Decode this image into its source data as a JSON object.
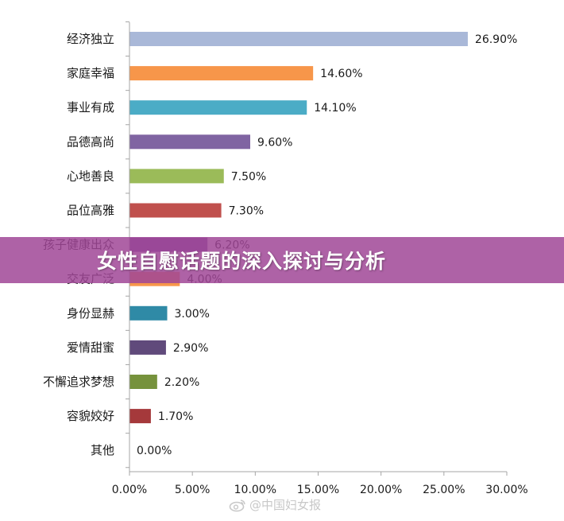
{
  "banner": {
    "title": "女性自慰话题的深入探讨与分析"
  },
  "watermark": {
    "text": "@中国妇女报",
    "icon": "weibo-icon"
  },
  "chart_data": {
    "type": "bar",
    "orientation": "horizontal",
    "categories": [
      "经济独立",
      "家庭幸福",
      "事业有成",
      "品德高尚",
      "心地善良",
      "品位高雅",
      "孩子健康出众",
      "交友广泛",
      "身份显赫",
      "爱情甜蜜",
      "不懈追求梦想",
      "容貌姣好",
      "其他"
    ],
    "values": [
      26.9,
      14.6,
      14.1,
      9.6,
      7.5,
      7.3,
      6.2,
      4.0,
      3.0,
      2.9,
      2.2,
      1.7,
      0.0
    ],
    "data_labels": [
      "26.90%",
      "14.60%",
      "14.10%",
      "9.60%",
      "7.50%",
      "7.30%",
      "6.20%",
      "4.00%",
      "3.00%",
      "2.90%",
      "2.20%",
      "1.70%",
      "0.00%"
    ],
    "colors": [
      "#a9b8d8",
      "#f7964a",
      "#4bacc6",
      "#8064a2",
      "#9bbb59",
      "#c0504d",
      "#7a4fa0",
      "#f7964a",
      "#2f8aa6",
      "#604a7b",
      "#76923c",
      "#a5393b",
      "#7f7f7f"
    ],
    "xlim": [
      0,
      30
    ],
    "x_ticks": [
      0,
      5,
      10,
      15,
      20,
      25,
      30
    ],
    "x_tick_labels": [
      "0.00%",
      "5.00%",
      "10.00%",
      "15.00%",
      "20.00%",
      "25.00%",
      "30.00%"
    ],
    "grid": false,
    "legend": "none"
  }
}
